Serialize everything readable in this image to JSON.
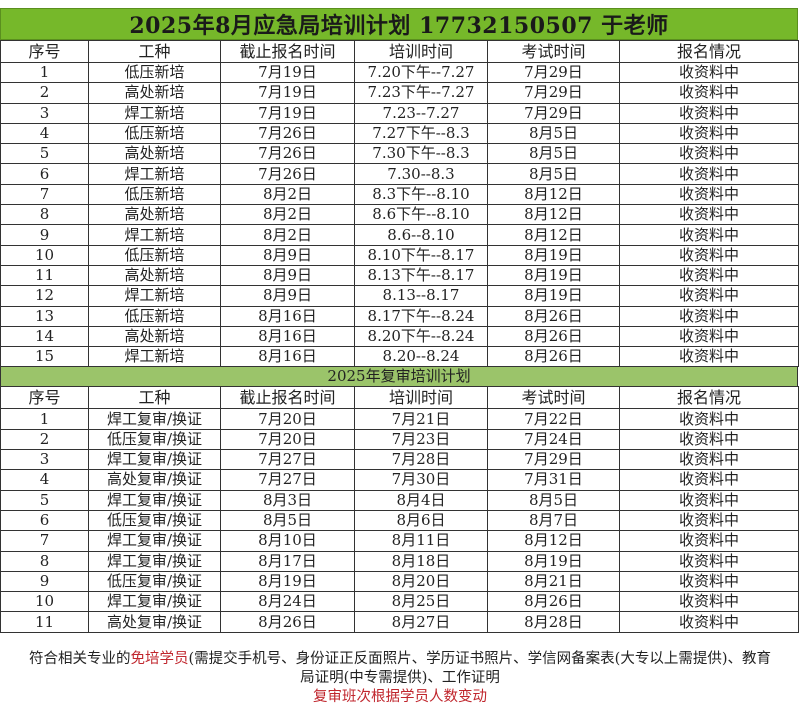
{
  "title": "2025年8月应急局培训计划 17732150507 于老师",
  "headers": [
    "序号",
    "工种",
    "截止报名时间",
    "培训时间",
    "考试时间",
    "报名情况"
  ],
  "new_training": [
    [
      "1",
      "低压新培",
      "7月19日",
      "7.20下午--7.27",
      "7月29日",
      "收资料中"
    ],
    [
      "2",
      "高处新培",
      "7月19日",
      "7.23下午--7.27",
      "7月29日",
      "收资料中"
    ],
    [
      "3",
      "焊工新培",
      "7月19日",
      "7.23--7.27",
      "7月29日",
      "收资料中"
    ],
    [
      "4",
      "低压新培",
      "7月26日",
      "7.27下午--8.3",
      "8月5日",
      "收资料中"
    ],
    [
      "5",
      "高处新培",
      "7月26日",
      "7.30下午--8.3",
      "8月5日",
      "收资料中"
    ],
    [
      "6",
      "焊工新培",
      "7月26日",
      "7.30--8.3",
      "8月5日",
      "收资料中"
    ],
    [
      "7",
      "低压新培",
      "8月2日",
      "8.3下午--8.10",
      "8月12日",
      "收资料中"
    ],
    [
      "8",
      "高处新培",
      "8月2日",
      "8.6下午--8.10",
      "8月12日",
      "收资料中"
    ],
    [
      "9",
      "焊工新培",
      "8月2日",
      "8.6--8.10",
      "8月12日",
      "收资料中"
    ],
    [
      "10",
      "低压新培",
      "8月9日",
      "8.10下午--8.17",
      "8月19日",
      "收资料中"
    ],
    [
      "11",
      "高处新培",
      "8月9日",
      "8.13下午--8.17",
      "8月19日",
      "收资料中"
    ],
    [
      "12",
      "焊工新培",
      "8月9日",
      "8.13--8.17",
      "8月19日",
      "收资料中"
    ],
    [
      "13",
      "低压新培",
      "8月16日",
      "8.17下午--8.24",
      "8月26日",
      "收资料中"
    ],
    [
      "14",
      "高处新培",
      "8月16日",
      "8.20下午--8.24",
      "8月26日",
      "收资料中"
    ],
    [
      "15",
      "焊工新培",
      "8月16日",
      "8.20--8.24",
      "8月26日",
      "收资料中"
    ]
  ],
  "review_title": "2025年复审培训计划",
  "review_training": [
    [
      "1",
      "焊工复审/换证",
      "7月20日",
      "7月21日",
      "7月22日",
      "收资料中"
    ],
    [
      "2",
      "低压复审/换证",
      "7月20日",
      "7月23日",
      "7月24日",
      "收资料中"
    ],
    [
      "3",
      "焊工复审/换证",
      "7月27日",
      "7月28日",
      "7月29日",
      "收资料中"
    ],
    [
      "4",
      "高处复审/换证",
      "7月27日",
      "7月30日",
      "7月31日",
      "收资料中"
    ],
    [
      "5",
      "焊工复审/换证",
      "8月3日",
      "8月4日",
      "8月5日",
      "收资料中"
    ],
    [
      "6",
      "低压复审/换证",
      "8月5日",
      "8月6日",
      "8月7日",
      "收资料中"
    ],
    [
      "7",
      "焊工复审/换证",
      "8月10日",
      "8月11日",
      "8月12日",
      "收资料中"
    ],
    [
      "8",
      "焊工复审/换证",
      "8月17日",
      "8月18日",
      "8月19日",
      "收资料中"
    ],
    [
      "9",
      "低压复审/换证",
      "8月19日",
      "8月20日",
      "8月21日",
      "收资料中"
    ],
    [
      "10",
      "焊工复审/换证",
      "8月24日",
      "8月25日",
      "8月26日",
      "收资料中"
    ],
    [
      "11",
      "高处复审/换证",
      "8月26日",
      "8月27日",
      "8月28日",
      "收资料中"
    ]
  ],
  "footer": {
    "line1_prefix": "符合相关专业的",
    "line1_highlight": "免培学员",
    "line1_rest": "(需提交手机号、身份证正反面照片、学历证书照片、学信网备案表(大专以上需提供)、教育",
    "line2": "局证明(中专需提供)、工作证明",
    "line3": "复审班次根据学员人数变动"
  },
  "colors": {
    "title_bg": "#76b82a",
    "subtitle_bg": "#9bc46a",
    "highlight": "#c0262d"
  }
}
